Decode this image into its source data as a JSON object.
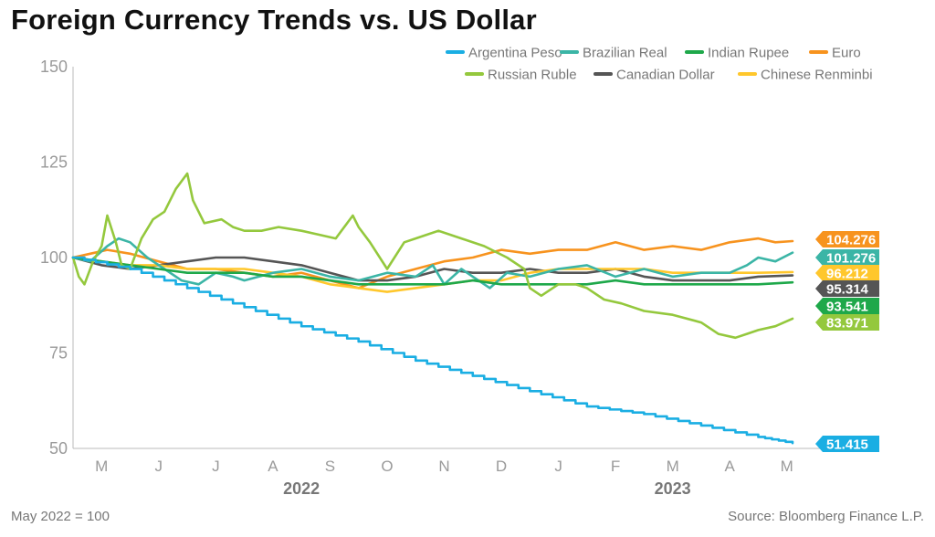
{
  "title": "Foreign Currency Trends vs. US Dollar",
  "footnote": "May 2022 = 100",
  "source": "Source: Bloomberg Finance L.P.",
  "chart_data": {
    "type": "line",
    "title": "Foreign Currency Trends vs. US Dollar",
    "xlabel": "",
    "ylabel": "",
    "ylim": [
      50,
      150
    ],
    "yticks": [
      50,
      75,
      100,
      125,
      150
    ],
    "xlim": [
      0,
      13
    ],
    "month_ticks": [
      {
        "x": 0.5,
        "label": "M"
      },
      {
        "x": 1.5,
        "label": "J"
      },
      {
        "x": 2.5,
        "label": "J"
      },
      {
        "x": 3.5,
        "label": "A"
      },
      {
        "x": 4.5,
        "label": "S"
      },
      {
        "x": 5.5,
        "label": "O"
      },
      {
        "x": 6.5,
        "label": "N"
      },
      {
        "x": 7.5,
        "label": "D"
      },
      {
        "x": 8.5,
        "label": "J"
      },
      {
        "x": 9.5,
        "label": "F"
      },
      {
        "x": 10.5,
        "label": "M"
      },
      {
        "x": 11.5,
        "label": "A"
      },
      {
        "x": 12.5,
        "label": "M"
      }
    ],
    "year_labels": [
      {
        "x": 4,
        "label": "2022"
      },
      {
        "x": 10.5,
        "label": "2023"
      }
    ],
    "grid": false,
    "legend_position": "top-right",
    "series": [
      {
        "name": "Argentina Peso",
        "color": "#1aaee3",
        "end_label": "51.415",
        "style": "step",
        "x": [
          0,
          1,
          2,
          3,
          4,
          5,
          6,
          7,
          8,
          9,
          10,
          11,
          12,
          12.6
        ],
        "values": [
          100,
          97,
          92,
          87,
          82,
          78,
          73,
          69,
          65,
          61,
          59,
          56,
          53,
          51.4
        ]
      },
      {
        "name": "Brazilian Real",
        "color": "#3bb5a6",
        "end_label": "101.276",
        "style": "line",
        "x": [
          0,
          0.3,
          0.6,
          0.8,
          1.0,
          1.3,
          1.6,
          1.9,
          2.2,
          2.5,
          2.8,
          3.0,
          3.5,
          4.0,
          4.5,
          5.0,
          5.5,
          6.0,
          6.3,
          6.5,
          6.8,
          7.0,
          7.3,
          7.6,
          8.0,
          8.5,
          9.0,
          9.5,
          10.0,
          10.5,
          11.0,
          11.5,
          11.8,
          12.0,
          12.3,
          12.6
        ],
        "values": [
          100,
          99,
          103,
          105,
          104,
          100,
          97,
          94,
          93,
          96,
          95,
          94,
          96,
          97,
          95,
          94,
          96,
          95,
          98,
          93,
          97,
          95,
          92,
          96,
          95,
          97,
          98,
          95,
          97,
          95,
          96,
          96,
          98,
          100,
          99,
          101.3
        ]
      },
      {
        "name": "Indian Rupee",
        "color": "#1ea84a",
        "end_label": "93.541",
        "style": "line",
        "x": [
          0,
          0.5,
          1.0,
          1.5,
          2.0,
          2.5,
          3.0,
          3.5,
          4.0,
          4.5,
          5.0,
          5.5,
          6.0,
          6.5,
          7.0,
          7.5,
          8.0,
          8.5,
          9.0,
          9.5,
          10.0,
          10.5,
          11.0,
          11.5,
          12.0,
          12.6
        ],
        "values": [
          100,
          99,
          98,
          97,
          96,
          96,
          96,
          95,
          95,
          94,
          93,
          93,
          93,
          93,
          94,
          93,
          93,
          93,
          93,
          94,
          93,
          93,
          93,
          93,
          93,
          93.5
        ]
      },
      {
        "name": "Euro",
        "color": "#f7931e",
        "end_label": "104.276",
        "style": "line",
        "x": [
          0,
          0.3,
          0.6,
          1.0,
          1.5,
          2.0,
          2.5,
          3.0,
          3.5,
          4.0,
          4.5,
          5.0,
          5.5,
          6.0,
          6.5,
          7.0,
          7.5,
          8.0,
          8.5,
          9.0,
          9.5,
          10.0,
          10.5,
          11.0,
          11.5,
          12.0,
          12.3,
          12.6
        ],
        "values": [
          100,
          101,
          102,
          101,
          99,
          97,
          97,
          96,
          95,
          96,
          94,
          92,
          95,
          97,
          99,
          100,
          102,
          101,
          102,
          102,
          104,
          102,
          103,
          102,
          104,
          105,
          104,
          104.3
        ]
      },
      {
        "name": "Russian Ruble",
        "color": "#94c83d",
        "end_label": "83.971",
        "style": "line",
        "x": [
          0,
          0.1,
          0.2,
          0.35,
          0.5,
          0.6,
          0.75,
          0.85,
          1.0,
          1.2,
          1.4,
          1.6,
          1.8,
          2.0,
          2.1,
          2.3,
          2.6,
          2.8,
          3.0,
          3.3,
          3.6,
          4.0,
          4.3,
          4.6,
          4.9,
          5.0,
          5.2,
          5.5,
          5.8,
          6.0,
          6.4,
          6.8,
          7.2,
          7.6,
          7.9,
          8.0,
          8.2,
          8.5,
          8.8,
          9.0,
          9.3,
          9.6,
          10.0,
          10.5,
          11.0,
          11.3,
          11.6,
          11.8,
          12.0,
          12.3,
          12.6
        ],
        "values": [
          100,
          95,
          93,
          99,
          103,
          111,
          104,
          98,
          97,
          105,
          110,
          112,
          118,
          122,
          115,
          109,
          110,
          108,
          107,
          107,
          108,
          107,
          106,
          105,
          111,
          108,
          104,
          97,
          104,
          105,
          107,
          105,
          103,
          100,
          97,
          92,
          90,
          93,
          93,
          92,
          89,
          88,
          86,
          85,
          83,
          80,
          79,
          80,
          81,
          82,
          84
        ]
      },
      {
        "name": "Canadian Dollar",
        "color": "#555555",
        "end_label": "95.314",
        "style": "line",
        "x": [
          0,
          0.5,
          1.0,
          1.5,
          2.0,
          2.5,
          3.0,
          3.5,
          4.0,
          4.5,
          5.0,
          5.5,
          6.0,
          6.5,
          7.0,
          7.5,
          8.0,
          8.5,
          9.0,
          9.5,
          10.0,
          10.5,
          11.0,
          11.5,
          12.0,
          12.6
        ],
        "values": [
          100,
          98,
          97,
          98,
          99,
          100,
          100,
          99,
          98,
          96,
          94,
          94,
          95,
          97,
          96,
          96,
          97,
          96,
          96,
          97,
          95,
          94,
          94,
          94,
          95,
          95.3
        ]
      },
      {
        "name": "Chinese Renminbi",
        "color": "#ffc72c",
        "end_label": "96.212",
        "style": "line",
        "x": [
          0,
          0.5,
          1.0,
          1.5,
          2.0,
          2.5,
          3.0,
          3.5,
          4.0,
          4.5,
          5.0,
          5.5,
          6.0,
          6.5,
          7.0,
          7.5,
          8.0,
          8.5,
          9.0,
          9.5,
          10.0,
          10.5,
          11.0,
          11.5,
          12.0,
          12.6
        ],
        "values": [
          100,
          99,
          98,
          98,
          97,
          97,
          97,
          96,
          95,
          93,
          92,
          91,
          92,
          93,
          94,
          94,
          96,
          97,
          97,
          97,
          97,
          96,
          96,
          96,
          96,
          96.2
        ]
      }
    ]
  }
}
